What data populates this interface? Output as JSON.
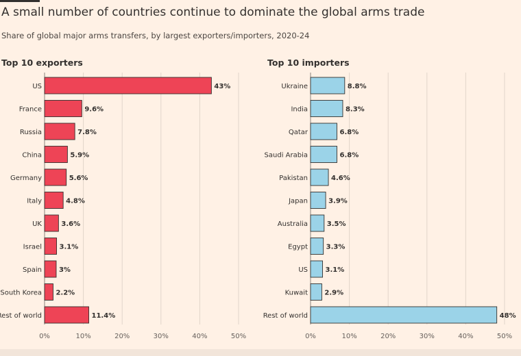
{
  "header": {
    "title": "A small number of countries continue to dominate the global arms trade",
    "subtitle": "Share of global major arms transfers, by largest exporters/importers, 2020-24"
  },
  "chart_data": [
    {
      "type": "bar",
      "orientation": "horizontal",
      "title": "Top 10 exporters",
      "categories": [
        "US",
        "France",
        "Russia",
        "China",
        "Germany",
        "Italy",
        "UK",
        "Israel",
        "Spain",
        "South Korea",
        "Rest of world"
      ],
      "values": [
        43,
        9.6,
        7.8,
        5.9,
        5.6,
        4.8,
        3.6,
        3.1,
        3,
        2.2,
        11.4
      ],
      "value_labels": [
        "43%",
        "9.6%",
        "7.8%",
        "5.9%",
        "5.6%",
        "4.8%",
        "3.6%",
        "3.1%",
        "3%",
        "2.2%",
        "11.4%"
      ],
      "xlim": [
        0,
        50
      ],
      "xticks": [
        0,
        10,
        20,
        30,
        40,
        50
      ],
      "xtick_labels": [
        "0%",
        "10%",
        "20%",
        "30%",
        "40%",
        "50%"
      ],
      "color": "#ee4456",
      "grid": true
    },
    {
      "type": "bar",
      "orientation": "horizontal",
      "title": "Top 10 importers",
      "categories": [
        "Ukraine",
        "India",
        "Qatar",
        "Saudi Arabia",
        "Pakistan",
        "Japan",
        "Australia",
        "Egypt",
        "US",
        "Kuwait",
        "Rest of world"
      ],
      "values": [
        8.8,
        8.3,
        6.8,
        6.8,
        4.6,
        3.9,
        3.5,
        3.3,
        3.1,
        2.9,
        48
      ],
      "value_labels": [
        "8.8%",
        "8.3%",
        "6.8%",
        "6.8%",
        "4.6%",
        "3.9%",
        "3.5%",
        "3.3%",
        "3.1%",
        "2.9%",
        "48%"
      ],
      "xlim": [
        0,
        50
      ],
      "xticks": [
        0,
        10,
        20,
        30,
        40,
        50
      ],
      "xtick_labels": [
        "0%",
        "10%",
        "20%",
        "30%",
        "40%",
        "50%"
      ],
      "color": "#9bd3e8",
      "grid": true
    }
  ]
}
